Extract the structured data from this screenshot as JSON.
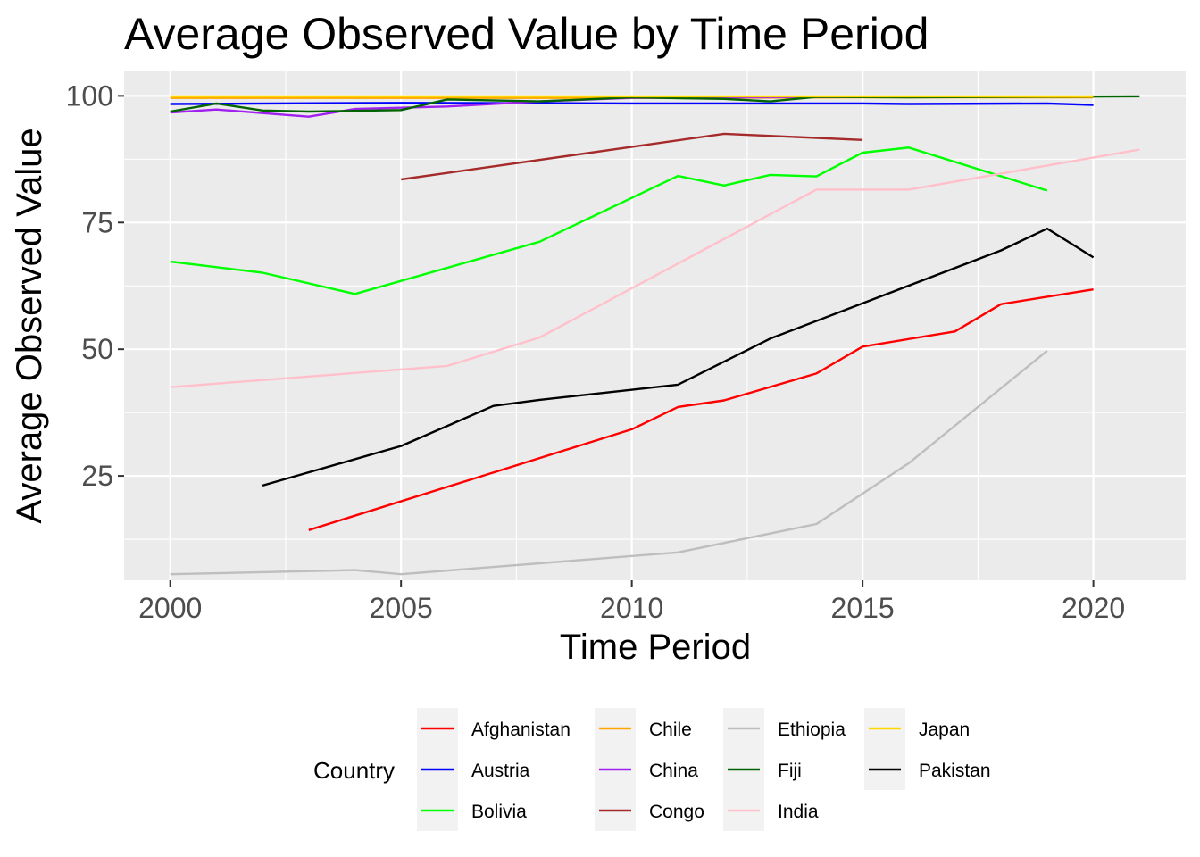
{
  "chart_data": {
    "type": "line",
    "title": "Average Observed Value by Time Period",
    "xlabel": "Time Period",
    "ylabel": "Average Observed Value",
    "xlim": [
      1999,
      2022
    ],
    "ylim": [
      4.4,
      105
    ],
    "x_ticks": [
      2000,
      2005,
      2010,
      2015,
      2020
    ],
    "y_ticks": [
      25,
      50,
      75,
      100
    ],
    "grid": true,
    "legend": {
      "title": "Country",
      "position": "bottom",
      "ncol": 4
    },
    "series": [
      {
        "name": "Afghanistan",
        "color": "#ff0000",
        "x": [
          2003,
          2010,
          2011,
          2012,
          2014,
          2015,
          2017,
          2018,
          2020
        ],
        "y": [
          14.3,
          34.2,
          38.6,
          39.9,
          45.2,
          50.5,
          53.5,
          58.9,
          61.8
        ]
      },
      {
        "name": "Austria",
        "color": "#0000ff",
        "x": [
          2000,
          2005,
          2010,
          2015,
          2016,
          2019,
          2020
        ],
        "y": [
          98.4,
          98.6,
          98.5,
          98.5,
          98.4,
          98.5,
          98.2
        ]
      },
      {
        "name": "Bolivia",
        "color": "#00ff00",
        "x": [
          2000,
          2002,
          2004,
          2008,
          2011,
          2012,
          2013,
          2014,
          2015,
          2016,
          2019
        ],
        "y": [
          67.3,
          65.1,
          60.9,
          71.2,
          84.2,
          82.3,
          84.4,
          84.1,
          88.8,
          89.8,
          81.3
        ]
      },
      {
        "name": "Chile",
        "color": "#ffa500",
        "x": [
          2000,
          2005,
          2010,
          2015,
          2020
        ],
        "y": [
          99.6,
          99.6,
          99.6,
          99.7,
          99.7
        ]
      },
      {
        "name": "China",
        "color": "#a020f0",
        "x": [
          2000,
          2001,
          2003,
          2004,
          2006,
          2008,
          2010,
          2015
        ],
        "y": [
          96.7,
          97.3,
          95.9,
          97.4,
          97.9,
          98.9,
          99.6,
          99.8
        ]
      },
      {
        "name": "Congo",
        "color": "#a52a2a",
        "x": [
          2005,
          2012,
          2015
        ],
        "y": [
          83.5,
          92.5,
          91.3
        ]
      },
      {
        "name": "Ethiopia",
        "color": "#bebebe",
        "x": [
          2000,
          2004,
          2005,
          2011,
          2014,
          2016,
          2019
        ],
        "y": [
          5.6,
          6.4,
          5.6,
          9.9,
          15.5,
          27.5,
          49.7
        ]
      },
      {
        "name": "Fiji",
        "color": "#006400",
        "x": [
          2000,
          2001,
          2002,
          2003,
          2005,
          2006,
          2008,
          2010,
          2012,
          2013,
          2014,
          2016,
          2018,
          2021
        ],
        "y": [
          96.9,
          98.5,
          97.1,
          96.9,
          97.2,
          99.3,
          98.9,
          99.7,
          99.4,
          98.9,
          99.8,
          99.7,
          99.8,
          99.9
        ]
      },
      {
        "name": "India",
        "color": "#ffc0cb",
        "x": [
          2000,
          2006,
          2008,
          2014,
          2016,
          2021
        ],
        "y": [
          42.5,
          46.7,
          52.3,
          81.5,
          81.5,
          89.4
        ]
      },
      {
        "name": "Japan",
        "color": "#ffd700",
        "x": [
          2000,
          2005,
          2010,
          2015,
          2020
        ],
        "y": [
          99.9,
          99.9,
          99.9,
          99.9,
          99.9
        ]
      },
      {
        "name": "Pakistan",
        "color": "#000000",
        "x": [
          2002,
          2005,
          2007,
          2008,
          2011,
          2013,
          2018,
          2019,
          2020
        ],
        "y": [
          23.1,
          30.9,
          38.8,
          40.0,
          43.0,
          52.1,
          69.5,
          73.8,
          68.1
        ]
      }
    ]
  }
}
